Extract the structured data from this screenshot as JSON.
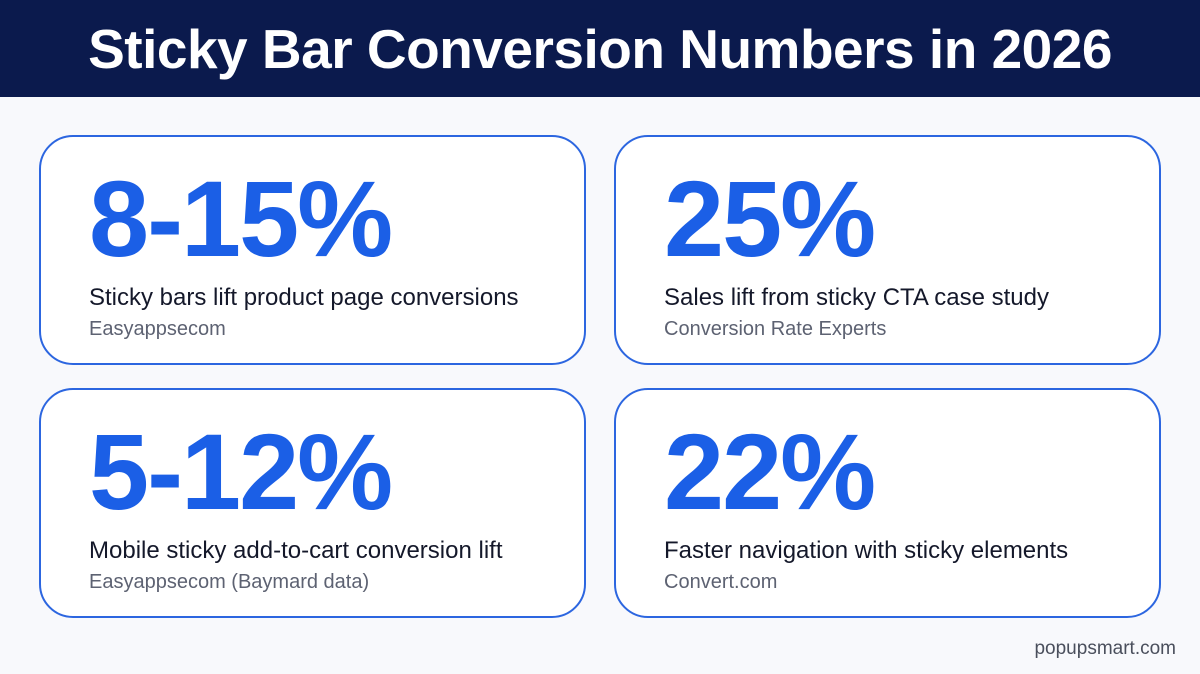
{
  "title": "Sticky Bar Conversion Numbers in 2026",
  "cards": [
    {
      "stat": "8-15%",
      "description": "Sticky bars lift product page conversions",
      "source": "Easyappsecom"
    },
    {
      "stat": "25%",
      "description": "Sales lift from sticky CTA case study",
      "source": "Conversion Rate Experts"
    },
    {
      "stat": "5-12%",
      "description": "Mobile sticky add-to-cart conversion lift",
      "source": "Easyappsecom (Baymard data)"
    },
    {
      "stat": "22%",
      "description": "Faster navigation with sticky elements",
      "source": "Convert.com"
    }
  ],
  "brand": "popupsmart.com",
  "colors": {
    "title_bar": "#0b1a4d",
    "accent": "#1b5fe6",
    "card_border": "#2c66e0",
    "background": "#f8f9fc"
  }
}
